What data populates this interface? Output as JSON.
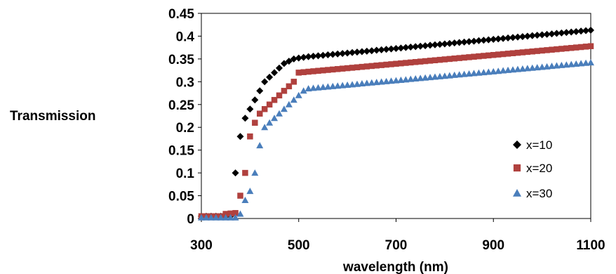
{
  "chart_data": {
    "type": "scatter",
    "title": "",
    "xlabel": "wavelength (nm)",
    "ylabel": "Transmission",
    "xlim": [
      300,
      1100
    ],
    "ylim": [
      0,
      0.45
    ],
    "x_ticks": [
      "300",
      "500",
      "700",
      "900",
      "1100"
    ],
    "y_ticks": [
      "0",
      "0.05",
      "0.1",
      "0.15",
      "0.2",
      "0.25",
      "0.3",
      "0.35",
      "0.4",
      "0.45"
    ],
    "grid": false,
    "legend_position": "right",
    "series": [
      {
        "name": "x=10",
        "marker": "diamond",
        "color": "#000000",
        "anchors": [
          [
            300,
            0.005
          ],
          [
            360,
            0.005
          ],
          [
            370,
            0.1
          ],
          [
            380,
            0.18
          ],
          [
            390,
            0.22
          ],
          [
            400,
            0.24
          ],
          [
            410,
            0.26
          ],
          [
            420,
            0.28
          ],
          [
            430,
            0.3
          ],
          [
            440,
            0.31
          ],
          [
            450,
            0.32
          ],
          [
            460,
            0.33
          ],
          [
            470,
            0.34
          ],
          [
            480,
            0.345
          ],
          [
            490,
            0.35
          ],
          [
            500,
            0.352
          ],
          [
            520,
            0.355
          ],
          [
            1100,
            0.413
          ]
        ]
      },
      {
        "name": "x=20",
        "marker": "square",
        "color": "#b0413e",
        "anchors": [
          [
            300,
            0.005
          ],
          [
            340,
            0.005
          ],
          [
            350,
            0.01
          ],
          [
            370,
            0.012
          ],
          [
            380,
            0.05
          ],
          [
            390,
            0.1
          ],
          [
            400,
            0.18
          ],
          [
            410,
            0.21
          ],
          [
            420,
            0.23
          ],
          [
            430,
            0.24
          ],
          [
            440,
            0.25
          ],
          [
            450,
            0.26
          ],
          [
            460,
            0.27
          ],
          [
            470,
            0.28
          ],
          [
            480,
            0.29
          ],
          [
            490,
            0.3
          ],
          [
            500,
            0.32
          ],
          [
            520,
            0.322
          ],
          [
            1100,
            0.378
          ]
        ]
      },
      {
        "name": "x=30",
        "marker": "triangle",
        "color": "#4a7ebb",
        "anchors": [
          [
            300,
            0.002
          ],
          [
            370,
            0.002
          ],
          [
            380,
            0.01
          ],
          [
            390,
            0.04
          ],
          [
            400,
            0.06
          ],
          [
            410,
            0.1
          ],
          [
            420,
            0.16
          ],
          [
            430,
            0.2
          ],
          [
            440,
            0.21
          ],
          [
            450,
            0.22
          ],
          [
            460,
            0.23
          ],
          [
            470,
            0.24
          ],
          [
            480,
            0.25
          ],
          [
            490,
            0.26
          ],
          [
            500,
            0.27
          ],
          [
            510,
            0.28
          ],
          [
            520,
            0.285
          ],
          [
            1100,
            0.342
          ]
        ]
      }
    ]
  }
}
